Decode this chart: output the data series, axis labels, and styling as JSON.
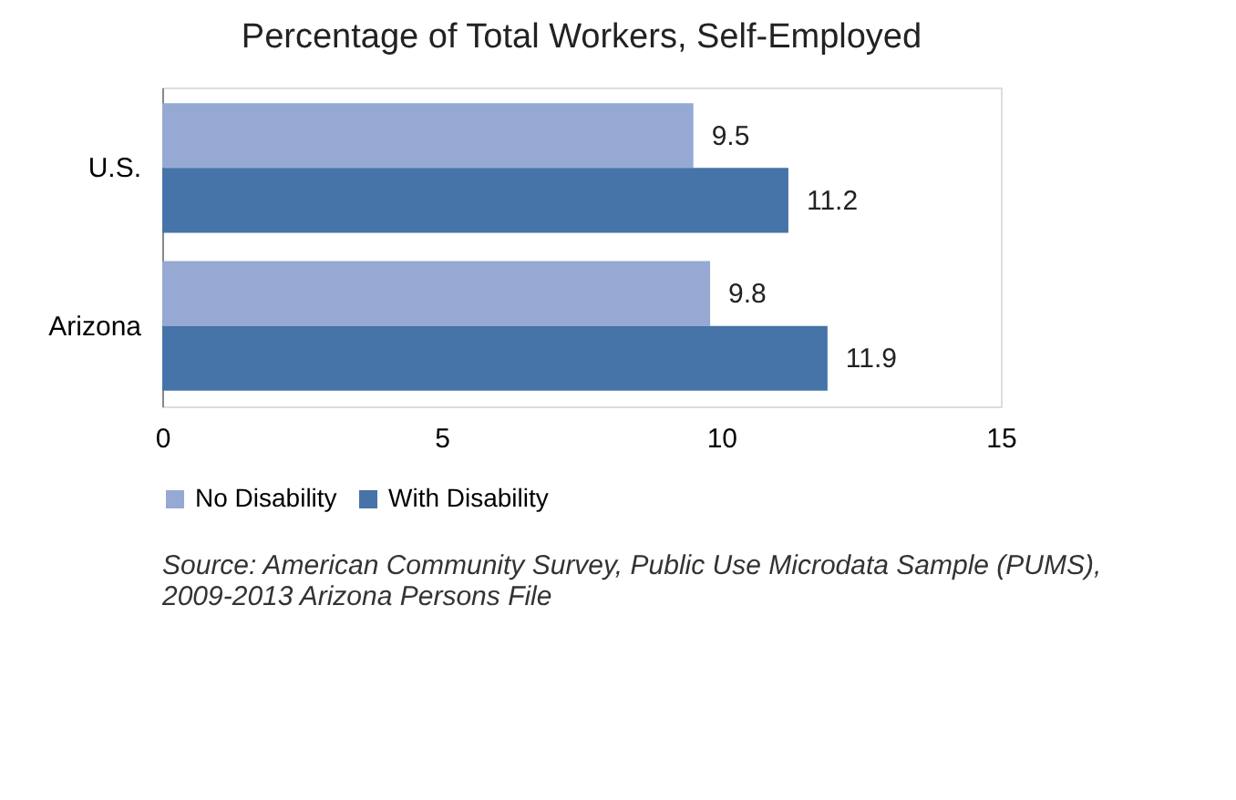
{
  "chart_data": {
    "type": "bar",
    "orientation": "horizontal",
    "title": "Percentage of Total Workers, Self-Employed",
    "categories": [
      "U.S.",
      "Arizona"
    ],
    "series": [
      {
        "name": "No Disability",
        "color": "#95a9d3",
        "values": [
          9.5,
          9.8
        ]
      },
      {
        "name": "With Disability",
        "color": "#4673a8",
        "values": [
          11.2,
          11.9
        ]
      }
    ],
    "xlim": [
      0,
      15
    ],
    "xticks": [
      0,
      5,
      10,
      15
    ],
    "grid": false,
    "legend": "bottom",
    "data_labels": true,
    "annotations": [
      "Source: American Community Survey, Public Use Microdata Sample (PUMS), 2009-2013 Arizona Persons File"
    ]
  }
}
